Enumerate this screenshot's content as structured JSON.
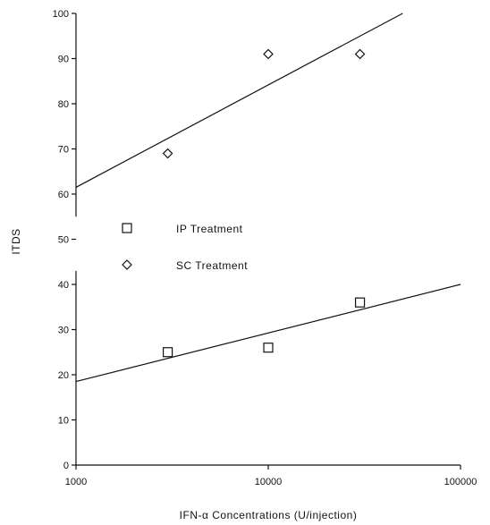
{
  "chart_data": {
    "type": "scatter",
    "xlabel": "IFN-α Concentrations (U/injection)",
    "ylabel": "ITDS",
    "x_scale": "log",
    "xlim": [
      1000,
      100000
    ],
    "ylim": [
      0,
      100
    ],
    "x_ticks": [
      "1000",
      "10000",
      "100000"
    ],
    "y_ticks": [
      "0",
      "10",
      "20",
      "30",
      "40",
      "50",
      "60",
      "70",
      "80",
      "90",
      "100"
    ],
    "grid": false,
    "legend_placement": "center-left",
    "series": [
      {
        "name": "IP Treatment",
        "marker": "square",
        "x": [
          3000,
          10000,
          30000
        ],
        "y": [
          25,
          26,
          36
        ],
        "trend": {
          "x": [
            1000,
            100000
          ],
          "y": [
            18.5,
            40
          ]
        }
      },
      {
        "name": "SC Treatment",
        "marker": "diamond",
        "x": [
          3000,
          10000,
          30000
        ],
        "y": [
          69,
          91,
          91
        ],
        "trend": {
          "x": [
            1000,
            50000
          ],
          "y": [
            61.5,
            100
          ]
        }
      }
    ]
  }
}
